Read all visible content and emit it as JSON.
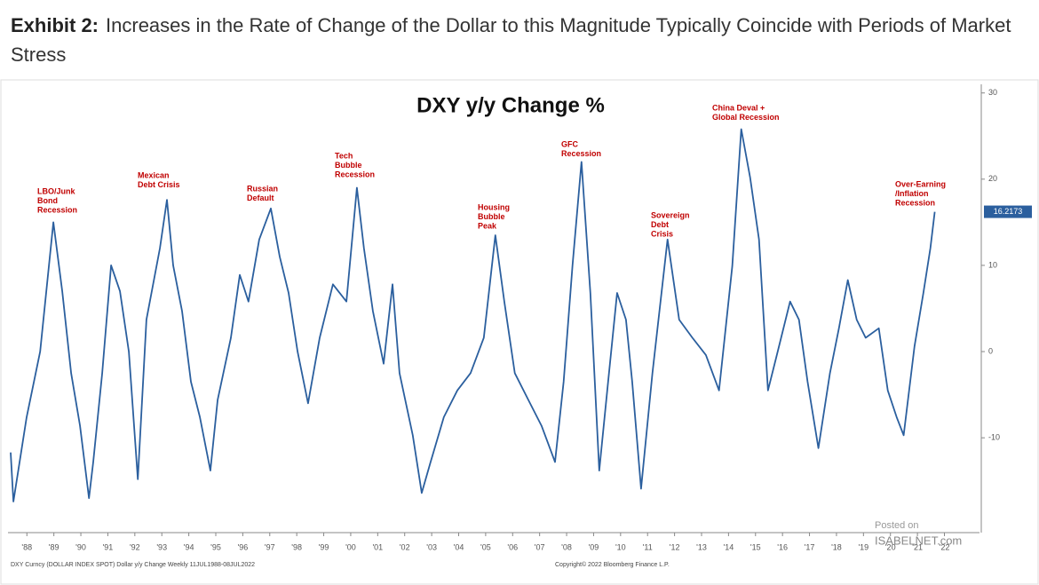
{
  "header": {
    "label": "Exhibit 2:",
    "title": "Increases in the Rate of Change of the Dollar to this Magnitude Typically Coincide with Periods of Market Stress"
  },
  "chart_data": {
    "type": "line",
    "title": "DXY y/y Change %",
    "x": [
      1987.9,
      1988.0,
      1988.49,
      1988.99,
      1989.48,
      1989.81,
      1990.14,
      1990.47,
      1990.8,
      1990.96,
      1991.29,
      1991.62,
      1991.95,
      1992.28,
      1992.61,
      1992.93,
      1993.43,
      1993.69,
      1993.92,
      1994.25,
      1994.58,
      1994.91,
      1995.3,
      1995.57,
      1996.06,
      1996.39,
      1996.71,
      1997.11,
      1997.54,
      1997.87,
      1998.2,
      1998.53,
      1998.92,
      1999.35,
      1999.84,
      2000.34,
      2000.73,
      2000.99,
      2001.32,
      2001.72,
      2002.05,
      2002.31,
      2002.8,
      2003.13,
      2003.46,
      2003.95,
      2004.45,
      2004.94,
      2005.43,
      2005.86,
      2006.19,
      2006.58,
      2007.08,
      2007.57,
      2008.07,
      2008.39,
      2008.72,
      2009.05,
      2009.38,
      2009.71,
      2010.04,
      2010.37,
      2010.7,
      2010.93,
      2011.26,
      2011.68,
      2012.24,
      2012.67,
      2013.16,
      2013.66,
      2014.15,
      2014.64,
      2014.97,
      2015.3,
      2015.63,
      2015.96,
      2016.29,
      2016.78,
      2017.11,
      2017.43,
      2017.83,
      2018.26,
      2018.59,
      2018.92,
      2019.25,
      2019.58,
      2020.07,
      2020.4,
      2020.73,
      2020.99,
      2021.39,
      2021.72,
      2021.98,
      2022.14
    ],
    "series": [
      {
        "color": "#2b5f9e",
        "values": [
          -11.7,
          -17.4,
          -7.6,
          0,
          15,
          7,
          -2.5,
          -8.6,
          -17,
          -12.8,
          -2.5,
          10,
          7,
          0,
          -14.8,
          3.7,
          12,
          17.6,
          10,
          4.7,
          -3.5,
          -7.6,
          -13.8,
          -5.6,
          1.6,
          8.9,
          5.8,
          13,
          16.6,
          11,
          6.8,
          0,
          -6,
          1.6,
          7.8,
          5.8,
          19,
          12,
          4.7,
          -1.4,
          7.8,
          -2.5,
          -9.7,
          -16.4,
          -12.8,
          -7.6,
          -4.5,
          -2.5,
          1.6,
          13.5,
          5.8,
          -2.5,
          -5.6,
          -8.6,
          -12.8,
          -3.5,
          10,
          22,
          6.8,
          -13.8,
          -3.5,
          6.8,
          3.7,
          -3.5,
          -15.9,
          -2.5,
          13,
          3.7,
          1.6,
          -0.4,
          -4.5,
          9.9,
          25.8,
          20.2,
          13,
          -4.5,
          -0.4,
          5.8,
          3.7,
          -3.5,
          -11.2,
          -2.5,
          2.7,
          8.3,
          3.7,
          1.6,
          2.7,
          -4.5,
          -7.6,
          -9.7,
          0.6,
          6.8,
          12,
          16.2173
        ]
      }
    ],
    "xlim": [
      1987.8,
      2023.8
    ],
    "xticks": [
      {
        "value": 1988.5,
        "label": "'88"
      },
      {
        "value": 1989.5,
        "label": "'89"
      },
      {
        "value": 1990.5,
        "label": "'90"
      },
      {
        "value": 1991.5,
        "label": "'91"
      },
      {
        "value": 1992.5,
        "label": "'92"
      },
      {
        "value": 1993.5,
        "label": "'93"
      },
      {
        "value": 1994.5,
        "label": "'94"
      },
      {
        "value": 1995.5,
        "label": "'95"
      },
      {
        "value": 1996.5,
        "label": "'96"
      },
      {
        "value": 1997.5,
        "label": "'97"
      },
      {
        "value": 1998.5,
        "label": "'98"
      },
      {
        "value": 1999.5,
        "label": "'99"
      },
      {
        "value": 2000.5,
        "label": "'00"
      },
      {
        "value": 2001.5,
        "label": "'01"
      },
      {
        "value": 2002.5,
        "label": "'02"
      },
      {
        "value": 2003.5,
        "label": "'03"
      },
      {
        "value": 2004.5,
        "label": "'04"
      },
      {
        "value": 2005.5,
        "label": "'05"
      },
      {
        "value": 2006.5,
        "label": "'06"
      },
      {
        "value": 2007.5,
        "label": "'07"
      },
      {
        "value": 2008.5,
        "label": "'08"
      },
      {
        "value": 2009.5,
        "label": "'09"
      },
      {
        "value": 2010.5,
        "label": "'10"
      },
      {
        "value": 2011.5,
        "label": "'11"
      },
      {
        "value": 2012.5,
        "label": "'12"
      },
      {
        "value": 2013.5,
        "label": "'13"
      },
      {
        "value": 2014.5,
        "label": "'14"
      },
      {
        "value": 2015.5,
        "label": "'15"
      },
      {
        "value": 2016.5,
        "label": "'16"
      },
      {
        "value": 2017.5,
        "label": "'17"
      },
      {
        "value": 2018.5,
        "label": "'18"
      },
      {
        "value": 2019.5,
        "label": "'19"
      },
      {
        "value": 2020.5,
        "label": "'20"
      },
      {
        "value": 2021.5,
        "label": "'21"
      },
      {
        "value": 2022.5,
        "label": "'22"
      }
    ],
    "ylim": [
      -21,
      31
    ],
    "yticks": [
      -10,
      0,
      10,
      20,
      30
    ],
    "annotations": [
      {
        "lines": [
          "LBO/Junk",
          "Bond",
          "Recession"
        ]
      },
      {
        "lines": [
          "Mexican",
          "Debt Crisis"
        ]
      },
      {
        "lines": [
          "Russian",
          "Default"
        ]
      },
      {
        "lines": [
          "Tech",
          "Bubble",
          "Recession"
        ]
      },
      {
        "lines": [
          "Housing",
          "Bubble",
          "Peak"
        ]
      },
      {
        "lines": [
          "GFC",
          "Recession"
        ]
      },
      {
        "lines": [
          "Sovereign",
          "Debt",
          "Crisis"
        ]
      },
      {
        "lines": [
          "China Deval +",
          "Global Recession"
        ]
      },
      {
        "lines": [
          "Over-Earning",
          "/Inflation",
          "Recession"
        ]
      }
    ],
    "annotation_color": "#c00000",
    "footer_left": "DXY Curncy (DOLLAR INDEX SPOT) Dollar y/y Change  Weekly 11JUL1988-08JUL2022",
    "footer_right": "Copyright© 2022 Bloomberg Finance L.P.",
    "watermark": [
      "Posted on",
      "ISABELNET.com"
    ]
  }
}
